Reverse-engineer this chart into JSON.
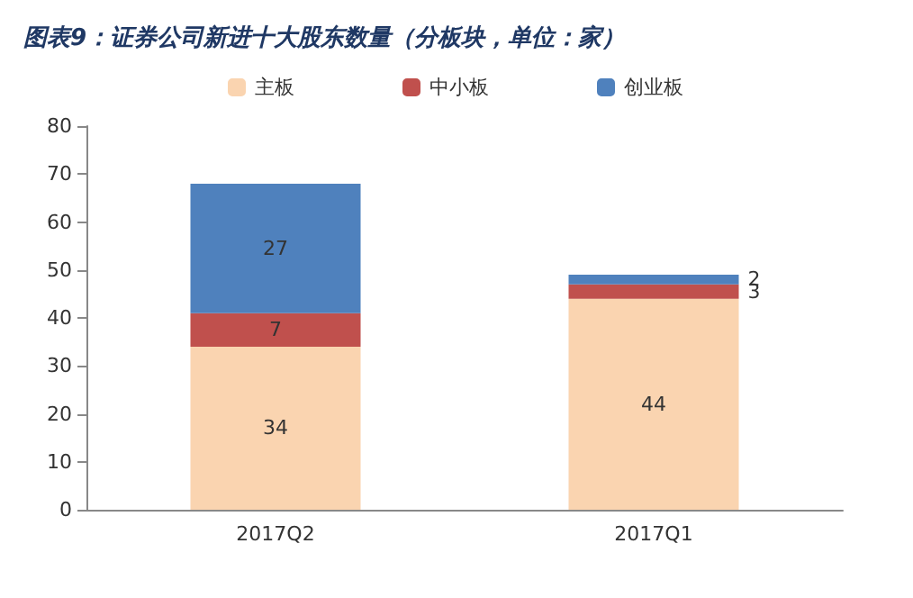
{
  "chart_data": {
    "type": "bar",
    "title": "图表9：证券公司新进十大股东数量（分板块，单位：家）",
    "categories": [
      "2017Q2",
      "2017Q1"
    ],
    "stacked": true,
    "data_labels": true,
    "legend": "top",
    "grid": false,
    "ylim": [
      0,
      80
    ],
    "yticks": [
      0,
      10,
      20,
      30,
      40,
      50,
      60,
      70,
      80
    ],
    "series": [
      {
        "name": "主板",
        "color": "#fad4b0",
        "values": [
          34,
          44
        ]
      },
      {
        "name": "中小板",
        "color": "#c0504d",
        "values": [
          7,
          3
        ]
      },
      {
        "name": "创业板",
        "color": "#4f81bd",
        "values": [
          27,
          2
        ]
      }
    ]
  }
}
